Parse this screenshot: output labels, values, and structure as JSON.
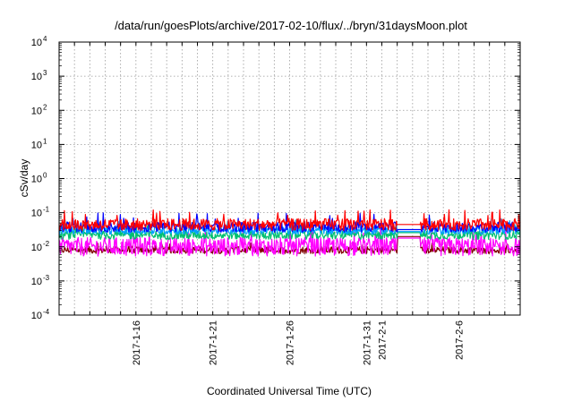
{
  "chart_data": {
    "type": "line",
    "title": "/data/run/goesPlots/archive/2017-02-10/flux/../bryn/31daysMoon.plot",
    "xlabel": "Coordinated Universal Time (UTC)",
    "ylabel": "cSv/day",
    "yscale": "log",
    "ylim": [
      0.0001,
      10000
    ],
    "xlim": [
      "2017-01-11",
      "2017-02-10"
    ],
    "grid": true,
    "y_ticks": [
      {
        "base": "10",
        "exp": "-4",
        "value": 0.0001
      },
      {
        "base": "10",
        "exp": "-3",
        "value": 0.001
      },
      {
        "base": "10",
        "exp": "-2",
        "value": 0.01
      },
      {
        "base": "10",
        "exp": "-1",
        "value": 0.1
      },
      {
        "base": "10",
        "exp": "0",
        "value": 1
      },
      {
        "base": "10",
        "exp": "1",
        "value": 10
      },
      {
        "base": "10",
        "exp": "2",
        "value": 100
      },
      {
        "base": "10",
        "exp": "3",
        "value": 1000
      },
      {
        "base": "10",
        "exp": "4",
        "value": 10000
      }
    ],
    "x_ticks": [
      {
        "label": "2017-1-16",
        "date": "2017-01-16"
      },
      {
        "label": "2017-1-21",
        "date": "2017-01-21"
      },
      {
        "label": "2017-1-26",
        "date": "2017-01-26"
      },
      {
        "label": "2017-1-31",
        "date": "2017-01-31"
      },
      {
        "label": "2017-2-1",
        "date": "2017-02-01"
      },
      {
        "label": "2017-2-6",
        "date": "2017-02-06"
      }
    ],
    "x_grid_dates": [
      "2017-01-12",
      "2017-01-13",
      "2017-01-14",
      "2017-01-15",
      "2017-01-16",
      "2017-01-17",
      "2017-01-18",
      "2017-01-19",
      "2017-01-20",
      "2017-01-21",
      "2017-01-22",
      "2017-01-23",
      "2017-01-24",
      "2017-01-25",
      "2017-01-26",
      "2017-01-27",
      "2017-01-28",
      "2017-01-29",
      "2017-01-30",
      "2017-01-31",
      "2017-02-01",
      "2017-02-02",
      "2017-02-03",
      "2017-02-04",
      "2017-02-05",
      "2017-02-06",
      "2017-02-07",
      "2017-02-08",
      "2017-02-09"
    ],
    "gap": [
      "2017-02-02",
      "2017-02-03"
    ],
    "series": [
      {
        "color": "#ff0000",
        "baseline": 0.045,
        "spread": 0.35,
        "spike": 0.11,
        "gap_value": 0.045
      },
      {
        "color": "#0000ff",
        "baseline": 0.038,
        "spread": 0.3,
        "spike": 0.09,
        "gap_value": 0.032
      },
      {
        "color": "#00a0ff",
        "baseline": 0.03,
        "spread": 0.22,
        "spike": 0.06,
        "gap_value": 0.028
      },
      {
        "color": "#00c070",
        "baseline": 0.022,
        "spread": 0.25,
        "spike": 0.045,
        "gap_value": 0.026
      },
      {
        "color": "#ff00ff",
        "baseline": 0.01,
        "spread": 0.55,
        "spike": 0.035,
        "gap_value": 0.018
      },
      {
        "color": "#800000",
        "baseline": 0.008,
        "spread": 0.2,
        "spike": 0.012,
        "gap_value": 0.02
      }
    ]
  }
}
